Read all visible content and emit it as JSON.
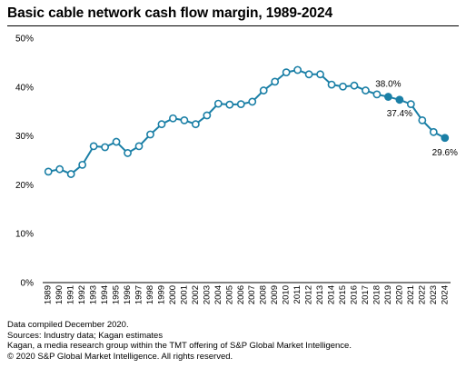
{
  "title": "Basic cable network cash flow margin, 1989-2024",
  "footer": {
    "line1": "Data compiled December 2020.",
    "line2": "Sources: Industry data; Kagan estimates",
    "line3": "Kagan, a media research group within the TMT offering of S&P Global Market Intelligence.",
    "line4": "© 2020 S&P Global Market Intelligence. All rights reserved."
  },
  "colors": {
    "line": "#1a7fa6",
    "marker_fill": "#ffffff",
    "estimate_fill": "#1a7fa6",
    "axis": "#000000"
  },
  "chart_data": {
    "type": "line",
    "title": "Basic cable network cash flow margin, 1989-2024",
    "xlabel": "",
    "ylabel": "",
    "ylim": [
      0,
      50
    ],
    "yticks": [
      "0%",
      "10%",
      "20%",
      "30%",
      "40%",
      "50%"
    ],
    "grid": false,
    "x": [
      "1989",
      "1990",
      "1991",
      "1992",
      "1993",
      "1994",
      "1995",
      "1996",
      "1997",
      "1998",
      "1999",
      "2000",
      "2001",
      "2002",
      "2003",
      "2004",
      "2005",
      "2006",
      "2007",
      "2008",
      "2009",
      "2010",
      "2011",
      "2012",
      "2013",
      "2014",
      "2015",
      "2016",
      "2017",
      "2018",
      "2019",
      "2020",
      "2021",
      "2022",
      "2023",
      "2024"
    ],
    "series": [
      {
        "values": [
          22.7,
          23.2,
          22.2,
          24.1,
          27.9,
          27.7,
          28.8,
          26.5,
          27.9,
          30.3,
          32.4,
          33.6,
          33.2,
          32.4,
          34.2,
          36.6,
          36.4,
          36.5,
          37.0,
          39.3,
          41.1,
          43.0,
          43.5,
          42.6,
          42.6,
          40.5,
          40.1,
          40.3,
          39.3,
          38.5,
          38.0,
          37.4,
          36.5,
          33.2,
          30.8,
          29.6
        ],
        "filled": [
          false,
          false,
          false,
          false,
          false,
          false,
          false,
          false,
          false,
          false,
          false,
          false,
          false,
          false,
          false,
          false,
          false,
          false,
          false,
          false,
          false,
          false,
          false,
          false,
          false,
          false,
          false,
          false,
          false,
          false,
          true,
          true,
          false,
          false,
          false,
          true
        ]
      }
    ],
    "annotations": [
      {
        "x": "2019",
        "text": "38.0%"
      },
      {
        "x": "2020",
        "text": "37.4%"
      },
      {
        "x": "2024",
        "text": "29.6%"
      }
    ]
  }
}
